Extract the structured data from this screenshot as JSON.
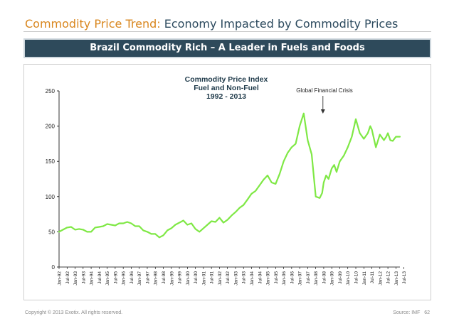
{
  "header": {
    "title_prefix": "Commodity Price Trend:",
    "title_suffix": "Economy Impacted by Commodity Prices",
    "banner": "Brazil Commodity Rich – A Leader in Fuels and Foods"
  },
  "footer": {
    "copyright": "Copyright © 2013 Exotix. All rights reserved.",
    "source": "Source:  IMF",
    "page_number": "62"
  },
  "colors": {
    "title_accent": "#d9871f",
    "title_main": "#2c4a5e",
    "banner_bg": "#2e4a5b",
    "line": "#7fe845",
    "chart_title": "#1f3a4a"
  },
  "chart_data": {
    "type": "line",
    "title_lines": [
      "Commodity Price Index",
      "Fuel and Non-Fuel",
      "1992 - 2013"
    ],
    "annotation": "Global Financial Crisis",
    "annotation_x": 32.9,
    "ylim": [
      0,
      250
    ],
    "yticks": [
      0,
      50,
      100,
      150,
      200,
      250
    ],
    "xlim": [
      0,
      42.5
    ],
    "categories": [
      "Jan-92",
      "Jul-92",
      "Jan-93",
      "Jul-93",
      "Jan-94",
      "Jul-94",
      "Jan-95",
      "Jul-95",
      "Jan-96",
      "Jul-96",
      "Jan-97",
      "Jul-97",
      "Jan-98",
      "Jul-98",
      "Jan-99",
      "Jul-99",
      "Jan-00",
      "Jul-00",
      "Jan-01",
      "Jul-01",
      "Jan-02",
      "Jul-02",
      "Jan-03",
      "Jul-03",
      "Jan-04",
      "Jul-04",
      "Jan-05",
      "Jul-05",
      "Jan-06",
      "Jul-06",
      "Jan-07",
      "Jul-07",
      "Jan-08",
      "Jul-08",
      "Jan-09",
      "Jul-09",
      "Jan-10",
      "Jul-10",
      "Jan-11",
      "Jul-11",
      "Jan-12",
      "Jul-12",
      "Jan-13",
      "Jul-13"
    ],
    "series": [
      {
        "name": "Commodity Price Index",
        "x": [
          0,
          0.5,
          1,
          1.5,
          2,
          2.5,
          3,
          3.5,
          4,
          4.5,
          5,
          5.5,
          6,
          6.5,
          7,
          7.5,
          8,
          8.5,
          9,
          9.5,
          10,
          10.5,
          11,
          11.5,
          12,
          12.5,
          13,
          13.5,
          14,
          14.5,
          15,
          15.5,
          16,
          16.5,
          17,
          17.5,
          18,
          18.5,
          19,
          19.5,
          20,
          20.5,
          21,
          21.5,
          22,
          22.5,
          23,
          23.5,
          24,
          24.5,
          25,
          25.5,
          26,
          26.5,
          27,
          27.5,
          28,
          28.5,
          29,
          29.5,
          30,
          30.5,
          31,
          31.5,
          32,
          32.5,
          32.8,
          33,
          33.3,
          33.6,
          34,
          34.3,
          34.6,
          35,
          35.5,
          36,
          36.5,
          37,
          37.5,
          38,
          38.5,
          38.8,
          39,
          39.5,
          40,
          40.5,
          40.8,
          41,
          41.3,
          41.6,
          42,
          42.5
        ],
        "values": [
          50,
          53,
          56,
          57,
          53,
          54,
          53,
          50,
          50,
          56,
          57,
          58,
          61,
          60,
          59,
          62,
          62,
          64,
          62,
          58,
          58,
          52,
          50,
          47,
          47,
          42,
          45,
          52,
          55,
          60,
          63,
          66,
          60,
          62,
          54,
          50,
          55,
          60,
          65,
          64,
          70,
          63,
          67,
          73,
          78,
          84,
          88,
          96,
          104,
          108,
          116,
          124,
          130,
          120,
          118,
          132,
          150,
          162,
          170,
          175,
          200,
          218,
          180,
          160,
          100,
          98,
          105,
          120,
          130,
          125,
          140,
          145,
          135,
          150,
          158,
          170,
          185,
          210,
          190,
          182,
          190,
          200,
          195,
          170,
          188,
          180,
          185,
          190,
          180,
          179,
          185,
          185
        ]
      }
    ]
  }
}
